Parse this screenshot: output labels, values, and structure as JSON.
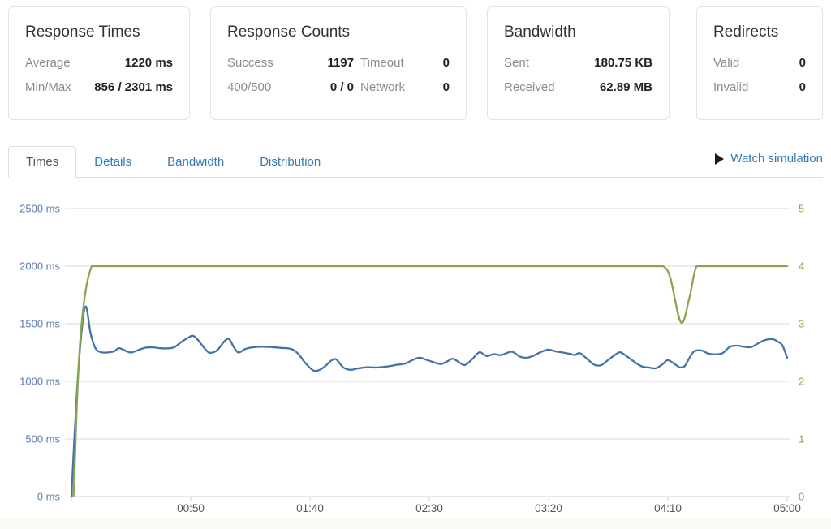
{
  "cards": {
    "response_times": {
      "title": "Response Times",
      "rows": [
        {
          "label": "Average",
          "value": "1220 ms"
        },
        {
          "label": "Min/Max",
          "value": "856 / 2301 ms"
        }
      ]
    },
    "response_counts": {
      "title": "Response Counts",
      "rows": [
        {
          "label": "Success",
          "value": "1197",
          "label2": "Timeout",
          "value2": "0"
        },
        {
          "label": "400/500",
          "value": "0 / 0",
          "label2": "Network",
          "value2": "0"
        }
      ]
    },
    "bandwidth": {
      "title": "Bandwidth",
      "rows": [
        {
          "label": "Sent",
          "value": "180.75 KB"
        },
        {
          "label": "Received",
          "value": "62.89 MB"
        }
      ]
    },
    "redirects": {
      "title": "Redirects",
      "rows": [
        {
          "label": "Valid",
          "value": "0"
        },
        {
          "label": "Invalid",
          "value": "0"
        }
      ]
    }
  },
  "tabs": {
    "items": [
      {
        "label": "Times",
        "active": true
      },
      {
        "label": "Details",
        "active": false
      },
      {
        "label": "Bandwidth",
        "active": false
      },
      {
        "label": "Distribution",
        "active": false
      }
    ],
    "watch_label": "Watch simulation"
  },
  "accent_color": "#337ab7",
  "chart_data": {
    "type": "line",
    "title": "",
    "grid": true,
    "legend": false,
    "x_range": [
      0,
      300
    ],
    "x_ticks": [
      {
        "t": 0,
        "label": ""
      },
      {
        "t": 50,
        "label": "00:50"
      },
      {
        "t": 100,
        "label": "01:40"
      },
      {
        "t": 150,
        "label": "02:30"
      },
      {
        "t": 200,
        "label": "03:20"
      },
      {
        "t": 250,
        "label": "04:10"
      },
      {
        "t": 300,
        "label": "05:00"
      }
    ],
    "left_axis": {
      "color": "#5a7ab0",
      "range": [
        0,
        2500
      ],
      "ticks": [
        {
          "v": 0,
          "label": "0 ms"
        },
        {
          "v": 500,
          "label": "500 ms"
        },
        {
          "v": 1000,
          "label": "1000 ms"
        },
        {
          "v": 1500,
          "label": "1500 ms"
        },
        {
          "v": 2000,
          "label": "2000 ms"
        },
        {
          "v": 2500,
          "label": "2500 ms"
        }
      ]
    },
    "right_axis": {
      "color": "#89a54e",
      "range": [
        0,
        5
      ],
      "ticks": [
        {
          "v": 0,
          "label": "0"
        },
        {
          "v": 1,
          "label": "1"
        },
        {
          "v": 2,
          "label": "2"
        },
        {
          "v": 3,
          "label": "3"
        },
        {
          "v": 4,
          "label": "4"
        },
        {
          "v": 5,
          "label": "5"
        }
      ]
    },
    "colors": {
      "grid": "#d8d8d8",
      "axis_line": "#c0d0e0",
      "x_label": "#555555"
    },
    "series": [
      {
        "name": "response-time",
        "axis": "left",
        "color": "#4572a7",
        "points": [
          [
            0,
            0
          ],
          [
            2,
            800
          ],
          [
            4,
            1380
          ],
          [
            6,
            1650
          ],
          [
            8,
            1420
          ],
          [
            10,
            1290
          ],
          [
            12,
            1255
          ],
          [
            15,
            1250
          ],
          [
            18,
            1262
          ],
          [
            20,
            1288
          ],
          [
            23,
            1262
          ],
          [
            25,
            1250
          ],
          [
            28,
            1272
          ],
          [
            31,
            1292
          ],
          [
            34,
            1295
          ],
          [
            37,
            1288
          ],
          [
            40,
            1286
          ],
          [
            43,
            1295
          ],
          [
            46,
            1340
          ],
          [
            49,
            1380
          ],
          [
            51,
            1395
          ],
          [
            53,
            1360
          ],
          [
            56,
            1282
          ],
          [
            58,
            1248
          ],
          [
            61,
            1268
          ],
          [
            64,
            1345
          ],
          [
            66,
            1368
          ],
          [
            68,
            1300
          ],
          [
            70,
            1250
          ],
          [
            73,
            1282
          ],
          [
            76,
            1295
          ],
          [
            80,
            1300
          ],
          [
            84,
            1297
          ],
          [
            88,
            1290
          ],
          [
            92,
            1282
          ],
          [
            95,
            1240
          ],
          [
            98,
            1160
          ],
          [
            101,
            1100
          ],
          [
            103,
            1092
          ],
          [
            106,
            1125
          ],
          [
            109,
            1182
          ],
          [
            111,
            1190
          ],
          [
            114,
            1120
          ],
          [
            117,
            1100
          ],
          [
            120,
            1112
          ],
          [
            124,
            1122
          ],
          [
            128,
            1120
          ],
          [
            132,
            1128
          ],
          [
            136,
            1142
          ],
          [
            140,
            1155
          ],
          [
            143,
            1185
          ],
          [
            146,
            1205
          ],
          [
            149,
            1185
          ],
          [
            152,
            1165
          ],
          [
            155,
            1150
          ],
          [
            158,
            1178
          ],
          [
            160,
            1196
          ],
          [
            163,
            1158
          ],
          [
            165,
            1142
          ],
          [
            168,
            1192
          ],
          [
            171,
            1252
          ],
          [
            174,
            1220
          ],
          [
            177,
            1236
          ],
          [
            180,
            1228
          ],
          [
            183,
            1250
          ],
          [
            185,
            1255
          ],
          [
            188,
            1214
          ],
          [
            191,
            1205
          ],
          [
            194,
            1226
          ],
          [
            197,
            1256
          ],
          [
            200,
            1275
          ],
          [
            203,
            1260
          ],
          [
            206,
            1250
          ],
          [
            209,
            1238
          ],
          [
            211,
            1228
          ],
          [
            213,
            1245
          ],
          [
            216,
            1198
          ],
          [
            219,
            1146
          ],
          [
            222,
            1140
          ],
          [
            225,
            1186
          ],
          [
            228,
            1232
          ],
          [
            230,
            1252
          ],
          [
            233,
            1214
          ],
          [
            236,
            1168
          ],
          [
            239,
            1130
          ],
          [
            242,
            1120
          ],
          [
            245,
            1114
          ],
          [
            248,
            1152
          ],
          [
            250,
            1184
          ],
          [
            253,
            1148
          ],
          [
            255,
            1122
          ],
          [
            257,
            1132
          ],
          [
            259,
            1202
          ],
          [
            261,
            1260
          ],
          [
            264,
            1268
          ],
          [
            267,
            1240
          ],
          [
            270,
            1234
          ],
          [
            273,
            1246
          ],
          [
            276,
            1300
          ],
          [
            279,
            1310
          ],
          [
            282,
            1300
          ],
          [
            285,
            1298
          ],
          [
            288,
            1332
          ],
          [
            291,
            1360
          ],
          [
            294,
            1366
          ],
          [
            296,
            1346
          ],
          [
            298,
            1312
          ],
          [
            300,
            1205
          ]
        ]
      },
      {
        "name": "simulation-level",
        "axis": "right",
        "color": "#89a54e",
        "clamp_max": 4,
        "points": [
          [
            0.8,
            0
          ],
          [
            8.5,
            4
          ],
          [
            40,
            4
          ],
          [
            80,
            4
          ],
          [
            120,
            4
          ],
          [
            160,
            4
          ],
          [
            200,
            4
          ],
          [
            230,
            4
          ],
          [
            244,
            4
          ],
          [
            248,
            4
          ],
          [
            251,
            3.8
          ],
          [
            255.5,
            3.02
          ],
          [
            259,
            3.45
          ],
          [
            262,
            4
          ],
          [
            266,
            4
          ],
          [
            275,
            4
          ],
          [
            290,
            4
          ],
          [
            300,
            4
          ]
        ]
      }
    ]
  }
}
